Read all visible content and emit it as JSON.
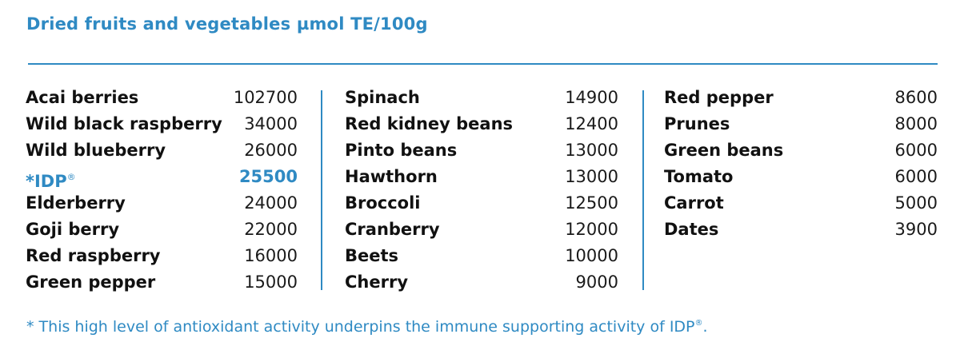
{
  "title": "Dried fruits and vegetables µmol TE/100g",
  "colors": {
    "accent": "#2f8ac3",
    "text": "#111111"
  },
  "columns": [
    {
      "rows": [
        {
          "name": "Acai berries",
          "value": "102700"
        },
        {
          "name": "Wild black raspberry",
          "value": "34000"
        },
        {
          "name": "Wild blueberry",
          "value": "26000"
        },
        {
          "name": "*IDP",
          "value": "25500",
          "highlight": true
        },
        {
          "name": "Elderberry",
          "value": "24000"
        },
        {
          "name": "Goji berry",
          "value": "22000"
        },
        {
          "name": "Red raspberry",
          "value": "16000"
        },
        {
          "name": "Green pepper",
          "value": "15000"
        }
      ]
    },
    {
      "rows": [
        {
          "name": "Spinach",
          "value": "14900"
        },
        {
          "name": "Red kidney beans",
          "value": "12400"
        },
        {
          "name": "Pinto beans",
          "value": "13000"
        },
        {
          "name": "Hawthorn",
          "value": "13000"
        },
        {
          "name": "Broccoli",
          "value": "12500"
        },
        {
          "name": "Cranberry",
          "value": "12000"
        },
        {
          "name": "Beets",
          "value": "10000"
        },
        {
          "name": "Cherry",
          "value": "9000"
        }
      ]
    },
    {
      "rows": [
        {
          "name": "Red pepper",
          "value": "8600"
        },
        {
          "name": "Prunes",
          "value": "8000"
        },
        {
          "name": "Green beans",
          "value": "6000"
        },
        {
          "name": "Tomato",
          "value": "6000"
        },
        {
          "name": "Carrot",
          "value": "5000"
        },
        {
          "name": "Dates",
          "value": "3900"
        }
      ]
    }
  ],
  "registered_mark": "®",
  "footnote": "* This high level of antioxidant activity underpins the immune supporting activity of IDP",
  "footnote_end": "."
}
